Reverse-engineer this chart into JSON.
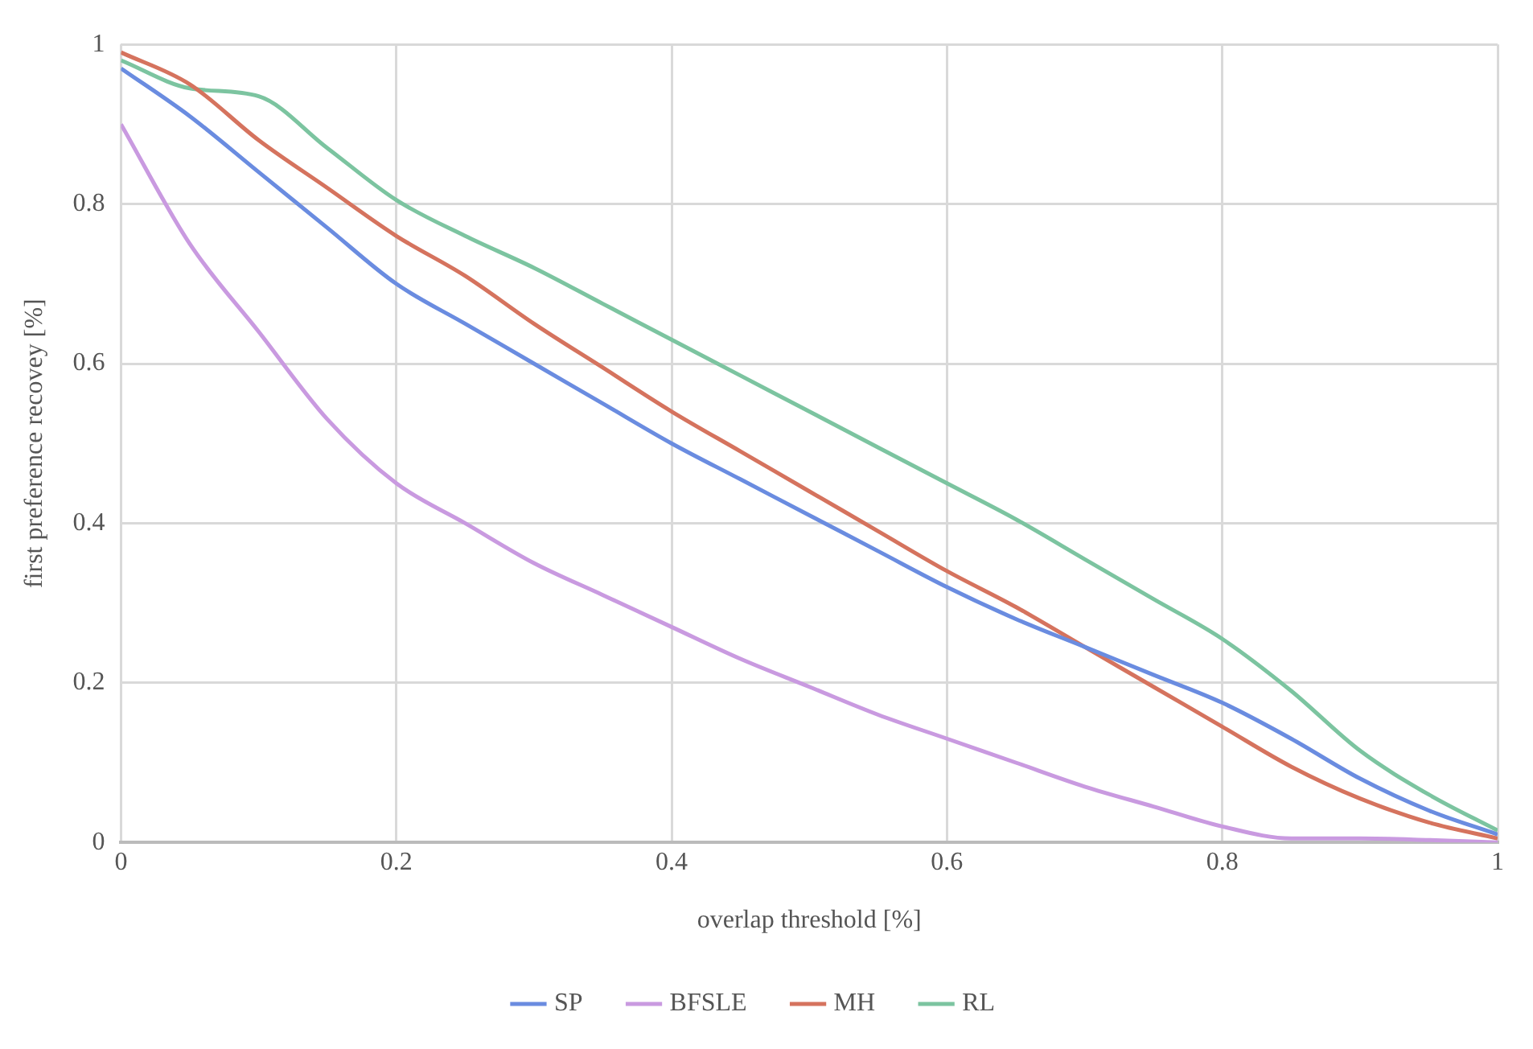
{
  "chart_data": {
    "type": "line",
    "xlabel": "overlap threshold [%]",
    "ylabel": "first preference recovey [%]",
    "x": [
      0,
      0.05,
      0.1,
      0.15,
      0.2,
      0.25,
      0.3,
      0.35,
      0.4,
      0.45,
      0.5,
      0.55,
      0.6,
      0.65,
      0.7,
      0.75,
      0.8,
      0.85,
      0.9,
      0.95,
      1
    ],
    "series": [
      {
        "name": "SP",
        "color": "#6a8ce0",
        "values": [
          0.97,
          0.91,
          0.84,
          0.77,
          0.7,
          0.65,
          0.6,
          0.55,
          0.5,
          0.455,
          0.41,
          0.365,
          0.32,
          0.28,
          0.245,
          0.21,
          0.175,
          0.13,
          0.08,
          0.04,
          0.01
        ]
      },
      {
        "name": "BFSLE",
        "color": "#c99ae0",
        "values": [
          0.9,
          0.75,
          0.64,
          0.53,
          0.45,
          0.4,
          0.35,
          0.31,
          0.27,
          0.23,
          0.195,
          0.16,
          0.13,
          0.1,
          0.07,
          0.045,
          0.02,
          0.005,
          0.005,
          0.003,
          0
        ]
      },
      {
        "name": "MH",
        "color": "#d5735e",
        "values": [
          0.99,
          0.95,
          0.88,
          0.82,
          0.76,
          0.71,
          0.65,
          0.595,
          0.54,
          0.49,
          0.44,
          0.39,
          0.34,
          0.295,
          0.245,
          0.195,
          0.145,
          0.095,
          0.055,
          0.025,
          0.005
        ]
      },
      {
        "name": "RL",
        "color": "#7cc4a0",
        "values": [
          0.98,
          0.945,
          0.935,
          0.87,
          0.805,
          0.76,
          0.72,
          0.675,
          0.63,
          0.585,
          0.54,
          0.495,
          0.45,
          0.405,
          0.355,
          0.305,
          0.255,
          0.19,
          0.115,
          0.06,
          0.015
        ]
      }
    ],
    "xlim": [
      0,
      1
    ],
    "xticks": [
      0,
      0.2,
      0.4,
      0.6,
      0.8,
      1
    ],
    "ylim": [
      0,
      1
    ],
    "yticks": [
      0,
      0.2,
      0.4,
      0.6,
      0.8,
      1
    ],
    "grid": true,
    "legend": "bottom",
    "marker": "none",
    "line_style": "solid"
  }
}
